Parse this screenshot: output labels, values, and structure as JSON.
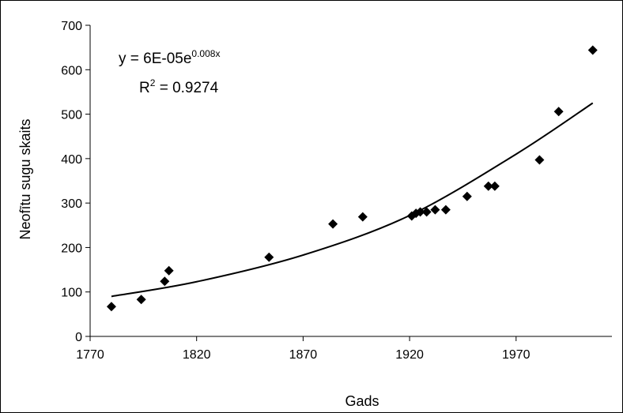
{
  "chart_data": {
    "type": "scatter",
    "xlabel": "Gads",
    "ylabel": "Neofītu sugu skaits",
    "xlim": [
      1770,
      2015
    ],
    "ylim": [
      0,
      700
    ],
    "xticks": [
      1770,
      1820,
      1870,
      1920,
      1970
    ],
    "yticks": [
      0,
      100,
      200,
      300,
      400,
      500,
      600,
      700
    ],
    "grid": false,
    "points": [
      {
        "x": 1780,
        "y": 67
      },
      {
        "x": 1794,
        "y": 83
      },
      {
        "x": 1805,
        "y": 124
      },
      {
        "x": 1807,
        "y": 148
      },
      {
        "x": 1854,
        "y": 178
      },
      {
        "x": 1884,
        "y": 253
      },
      {
        "x": 1898,
        "y": 269
      },
      {
        "x": 1921,
        "y": 271
      },
      {
        "x": 1923,
        "y": 277
      },
      {
        "x": 1925,
        "y": 280
      },
      {
        "x": 1928,
        "y": 280
      },
      {
        "x": 1932,
        "y": 285
      },
      {
        "x": 1937,
        "y": 285
      },
      {
        "x": 1947,
        "y": 315
      },
      {
        "x": 1957,
        "y": 338
      },
      {
        "x": 1960,
        "y": 338
      },
      {
        "x": 1981,
        "y": 397
      },
      {
        "x": 1990,
        "y": 506
      },
      {
        "x": 2006,
        "y": 644
      }
    ],
    "trendline": {
      "type": "exponential",
      "x": [
        1780,
        1820,
        1870,
        1920,
        1970,
        2006
      ],
      "y": [
        90,
        123,
        183,
        272,
        410,
        525
      ]
    },
    "annotations": {
      "equation_main": "y = 6E-05e",
      "equation_exponent": "0.008x",
      "r2_label": "R",
      "r2_superscript": "2",
      "r2_value": " = 0.9274"
    },
    "colors": {
      "marker": "#000000",
      "line": "#000000"
    }
  }
}
